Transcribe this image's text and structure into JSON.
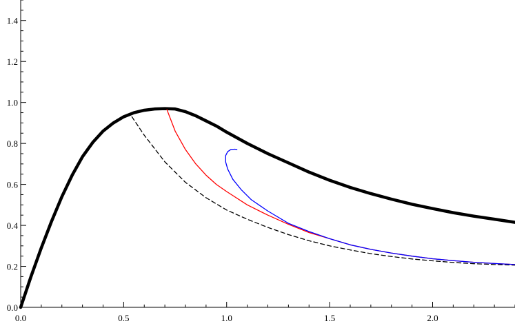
{
  "chart_data": {
    "type": "line",
    "title": "",
    "xlabel": "",
    "ylabel": "",
    "xlim": [
      0,
      2.4
    ],
    "ylim": [
      0,
      1.5
    ],
    "grid": false,
    "x_ticks": [
      {
        "value": 0.0,
        "label": "0.0"
      },
      {
        "value": 0.5,
        "label": "0.5"
      },
      {
        "value": 1.0,
        "label": "1.0"
      },
      {
        "value": 1.5,
        "label": "1.5"
      },
      {
        "value": 2.0,
        "label": "2.0"
      }
    ],
    "y_ticks": [
      {
        "value": 0.0,
        "label": "0.0"
      },
      {
        "value": 0.2,
        "label": "0.2"
      },
      {
        "value": 0.4,
        "label": "0.4"
      },
      {
        "value": 0.6,
        "label": "0.6"
      },
      {
        "value": 0.8,
        "label": "0.8"
      },
      {
        "value": 1.0,
        "label": "1.0"
      },
      {
        "value": 1.2,
        "label": "1.2"
      },
      {
        "value": 1.4,
        "label": "1.4"
      }
    ],
    "series": [
      {
        "color": "#000000",
        "style": "solid-thick",
        "points": [
          [
            0,
            0
          ],
          [
            0.05,
            0.15
          ],
          [
            0.1,
            0.29
          ],
          [
            0.15,
            0.42
          ],
          [
            0.2,
            0.54
          ],
          [
            0.25,
            0.645
          ],
          [
            0.3,
            0.735
          ],
          [
            0.35,
            0.805
          ],
          [
            0.4,
            0.86
          ],
          [
            0.45,
            0.9
          ],
          [
            0.5,
            0.93
          ],
          [
            0.55,
            0.95
          ],
          [
            0.6,
            0.962
          ],
          [
            0.65,
            0.968
          ],
          [
            0.7,
            0.97
          ],
          [
            0.75,
            0.968
          ],
          [
            0.8,
            0.955
          ],
          [
            0.85,
            0.935
          ],
          [
            0.9,
            0.91
          ],
          [
            0.95,
            0.885
          ],
          [
            1.0,
            0.855
          ],
          [
            1.1,
            0.8
          ],
          [
            1.2,
            0.75
          ],
          [
            1.3,
            0.705
          ],
          [
            1.4,
            0.66
          ],
          [
            1.5,
            0.62
          ],
          [
            1.6,
            0.585
          ],
          [
            1.7,
            0.555
          ],
          [
            1.8,
            0.528
          ],
          [
            1.9,
            0.503
          ],
          [
            2.0,
            0.482
          ],
          [
            2.1,
            0.462
          ],
          [
            2.2,
            0.445
          ],
          [
            2.3,
            0.43
          ],
          [
            2.4,
            0.415
          ]
        ]
      },
      {
        "color": "#000000",
        "style": "dashed",
        "points": [
          [
            0.54,
            0.93
          ],
          [
            0.6,
            0.84
          ],
          [
            0.7,
            0.71
          ],
          [
            0.8,
            0.61
          ],
          [
            0.9,
            0.535
          ],
          [
            1.0,
            0.475
          ],
          [
            1.1,
            0.43
          ],
          [
            1.2,
            0.39
          ],
          [
            1.3,
            0.355
          ],
          [
            1.4,
            0.325
          ],
          [
            1.5,
            0.3
          ],
          [
            1.6,
            0.28
          ],
          [
            1.7,
            0.262
          ],
          [
            1.8,
            0.248
          ],
          [
            1.9,
            0.236
          ],
          [
            2.0,
            0.227
          ],
          [
            2.1,
            0.219
          ],
          [
            2.2,
            0.213
          ],
          [
            2.3,
            0.209
          ],
          [
            2.4,
            0.206
          ]
        ]
      },
      {
        "color": "#ff0000",
        "style": "solid",
        "points": [
          [
            0.71,
            0.965
          ],
          [
            0.75,
            0.86
          ],
          [
            0.8,
            0.77
          ],
          [
            0.85,
            0.7
          ],
          [
            0.9,
            0.645
          ],
          [
            0.95,
            0.6
          ],
          [
            1.0,
            0.565
          ],
          [
            1.1,
            0.5
          ],
          [
            1.2,
            0.45
          ],
          [
            1.3,
            0.405
          ],
          [
            1.4,
            0.365
          ],
          [
            1.5,
            0.335
          ],
          [
            1.6,
            0.305
          ],
          [
            1.7,
            0.283
          ],
          [
            1.8,
            0.265
          ],
          [
            1.9,
            0.25
          ],
          [
            2.0,
            0.237
          ],
          [
            2.1,
            0.228
          ],
          [
            2.2,
            0.22
          ],
          [
            2.3,
            0.214
          ],
          [
            2.4,
            0.209
          ]
        ]
      },
      {
        "color": "#0000ff",
        "style": "solid",
        "points": [
          [
            1.05,
            0.77
          ],
          [
            1.04,
            0.772
          ],
          [
            1.02,
            0.77
          ],
          [
            1.005,
            0.76
          ],
          [
            0.995,
            0.74
          ],
          [
            0.995,
            0.71
          ],
          [
            1.005,
            0.675
          ],
          [
            1.03,
            0.625
          ],
          [
            1.07,
            0.575
          ],
          [
            1.12,
            0.525
          ],
          [
            1.2,
            0.47
          ],
          [
            1.3,
            0.41
          ],
          [
            1.4,
            0.37
          ],
          [
            1.5,
            0.335
          ],
          [
            1.6,
            0.305
          ],
          [
            1.7,
            0.283
          ],
          [
            1.8,
            0.265
          ],
          [
            1.9,
            0.25
          ],
          [
            2.0,
            0.237
          ],
          [
            2.1,
            0.228
          ],
          [
            2.2,
            0.22
          ],
          [
            2.3,
            0.214
          ],
          [
            2.4,
            0.209
          ]
        ]
      }
    ]
  }
}
